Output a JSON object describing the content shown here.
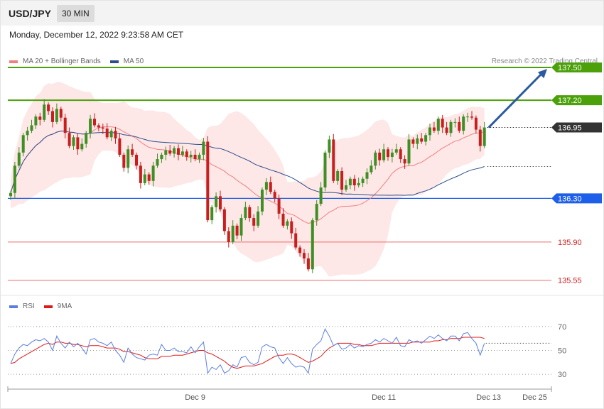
{
  "header": {
    "symbol": "USD/JPY",
    "timeframe": "30 MIN"
  },
  "datetime": "Monday, December 12, 2022 9:23:58 AM CET",
  "legend": {
    "ma20_label": "MA 20 + Bollinger Bands",
    "ma50_label": "MA 50",
    "rsi_label": "RSI",
    "ma9_label": "9MA"
  },
  "credit": "Research © 2022 Trading Central",
  "colors": {
    "resistance": "#4ca10b",
    "pivot": "#1d5fe8",
    "support": "#ef6b6b",
    "current": "#333333",
    "bollinger": "#fde3e3",
    "ma20": "#f08080",
    "ma50": "#2c4f8c",
    "candle_up": "#3f8f25",
    "candle_down": "#c81e1e",
    "arrow": "#2c5aa0",
    "rsi": "#5b7fe0",
    "rsi_ma": "#e01818"
  },
  "chart_data": {
    "type": "candlestick",
    "symbol": "USD/JPY",
    "timeframe": "30 MIN",
    "price_ylim": [
      135.45,
      137.78
    ],
    "levels": [
      {
        "label": "137.50",
        "value": 137.5,
        "kind": "resistance"
      },
      {
        "label": "137.20",
        "value": 137.2,
        "kind": "resistance"
      },
      {
        "label": "136.95",
        "value": 136.95,
        "kind": "current"
      },
      {
        "label": "136.30",
        "value": 136.3,
        "kind": "pivot"
      },
      {
        "label": "135.90",
        "value": 135.9,
        "kind": "support"
      },
      {
        "label": "135.55",
        "value": 135.55,
        "kind": "support"
      }
    ],
    "x_ticks": [
      {
        "label": "Dec 9",
        "index": 44
      },
      {
        "label": "Dec 11",
        "index": 89
      },
      {
        "label": "Dec 13",
        "index": 114
      },
      {
        "label": "Dec 25",
        "index": 125
      }
    ],
    "forecast_target": 137.5,
    "closes": [
      136.35,
      136.6,
      136.72,
      136.88,
      136.92,
      136.97,
      137.05,
      137.02,
      137.16,
      137.1,
      137.0,
      137.12,
      137.04,
      136.9,
      136.78,
      136.86,
      136.75,
      136.8,
      136.9,
      137.03,
      136.97,
      136.95,
      136.94,
      136.86,
      136.92,
      136.85,
      136.7,
      136.58,
      136.75,
      136.7,
      136.6,
      136.44,
      136.52,
      136.46,
      136.6,
      136.66,
      136.7,
      136.74,
      136.71,
      136.76,
      136.7,
      136.73,
      136.68,
      136.7,
      136.66,
      136.7,
      136.82,
      136.1,
      136.22,
      136.32,
      136.2,
      136.0,
      135.9,
      136.05,
      135.96,
      136.12,
      136.22,
      136.12,
      136.05,
      136.18,
      136.38,
      136.45,
      136.36,
      136.3,
      136.16,
      136.05,
      136.09,
      135.98,
      135.85,
      135.8,
      135.75,
      135.65,
      136.1,
      136.25,
      136.4,
      136.72,
      136.84,
      136.46,
      136.55,
      136.38,
      136.42,
      136.48,
      136.42,
      136.44,
      136.48,
      136.54,
      136.6,
      136.72,
      136.65,
      136.75,
      136.68,
      136.72,
      136.75,
      136.66,
      136.62,
      136.84,
      136.8,
      136.85,
      136.82,
      136.88,
      136.95,
      136.92,
      137.03,
      136.95,
      136.9,
      137.0,
      137.0,
      136.92,
      137.05,
      137.05,
      137.04,
      136.93,
      136.78,
      136.95
    ],
    "rsi_ylim": [
      20,
      80
    ],
    "rsi_levels": [
      70,
      50,
      30
    ],
    "rsi_current": 56,
    "rsi": [
      39,
      47,
      52,
      55,
      54,
      57,
      59,
      58,
      60,
      57,
      50,
      62,
      56,
      52,
      57,
      53,
      56,
      52,
      47,
      59,
      60,
      57,
      56,
      54,
      57,
      50,
      46,
      40,
      52,
      47,
      44,
      43,
      42,
      46,
      47,
      46,
      55,
      50,
      50,
      52,
      49,
      49,
      48,
      53,
      48,
      53,
      57,
      31,
      36,
      34,
      38,
      31,
      33,
      38,
      36,
      44,
      45,
      40,
      38,
      40,
      53,
      55,
      53,
      52,
      44,
      39,
      44,
      39,
      36,
      37,
      36,
      31,
      51,
      55,
      58,
      68,
      62,
      54,
      56,
      51,
      52,
      55,
      52,
      54,
      53,
      55,
      56,
      59,
      57,
      60,
      58,
      56,
      61,
      54,
      53,
      59,
      57,
      58,
      56,
      59,
      62,
      60,
      63,
      60,
      58,
      62,
      62,
      58,
      64,
      65,
      60,
      56,
      46,
      56
    ],
    "rsi_ma9": [
      39,
      40,
      43,
      45,
      47,
      49,
      51,
      53,
      55,
      56,
      55,
      57,
      57,
      56,
      56,
      55,
      55,
      54,
      53,
      54,
      54,
      54,
      53,
      52,
      52,
      52,
      51,
      49,
      49,
      48,
      47,
      46,
      44,
      43,
      43,
      43,
      45,
      45,
      45,
      46,
      46,
      46,
      47,
      48,
      49,
      50,
      50,
      48,
      47,
      45,
      43,
      41,
      38,
      36,
      35,
      36,
      37,
      37,
      37,
      38,
      39,
      41,
      43,
      45,
      46,
      46,
      47,
      47,
      46,
      44,
      42,
      40,
      41,
      43,
      45,
      49,
      52,
      54,
      56,
      56,
      56,
      56,
      55,
      55,
      54,
      54,
      54,
      55,
      56,
      56,
      56,
      56,
      56,
      56,
      56,
      56,
      57,
      57,
      57,
      57,
      57,
      58,
      58,
      59,
      59,
      60,
      60,
      60,
      61,
      61,
      61,
      61,
      61,
      60
    ]
  }
}
